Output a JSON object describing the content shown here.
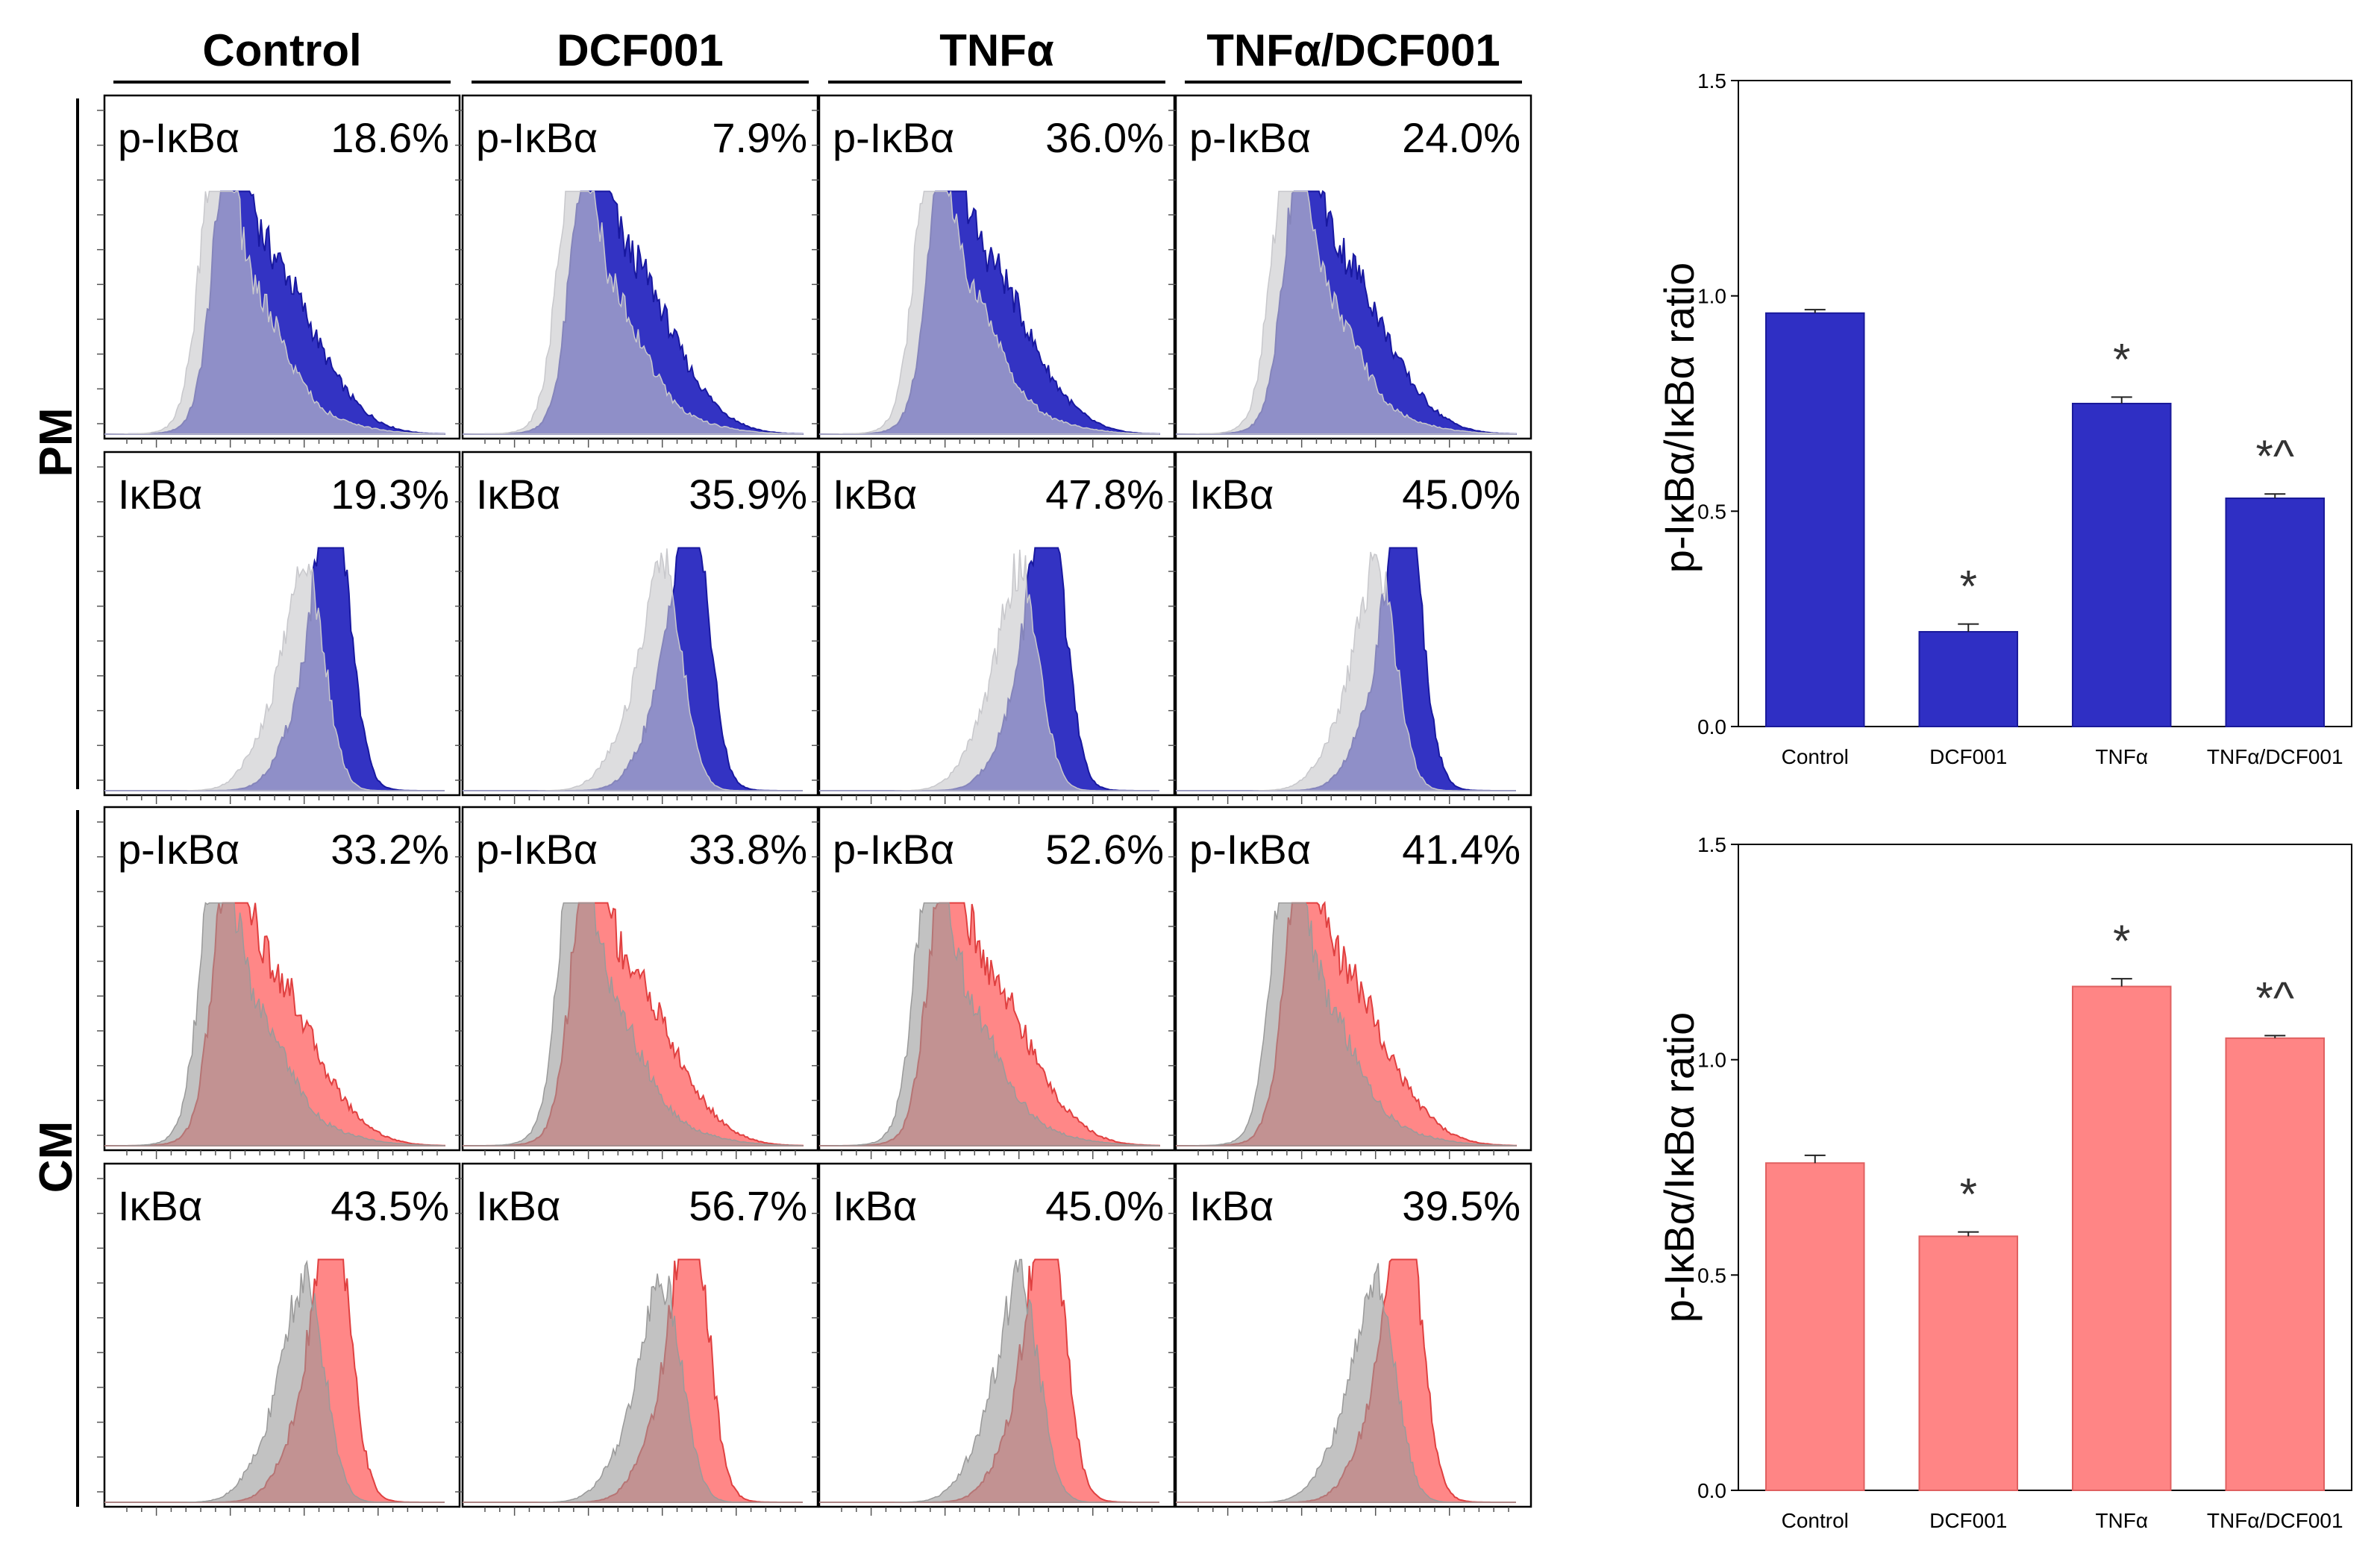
{
  "conditions": [
    "Control",
    "DCF001",
    "TNFα",
    "TNFα/DCF001"
  ],
  "row_groups": [
    "PM",
    "CM"
  ],
  "marker_labels": {
    "phospho": "p-IκBα",
    "total": "IκBα"
  },
  "histogram_panels": {
    "PM": {
      "phospho": [
        "18.6%",
        "7.9%",
        "36.0%",
        "24.0%"
      ],
      "total": [
        "19.3%",
        "35.9%",
        "47.8%",
        "45.0%"
      ]
    },
    "CM": {
      "phospho": [
        "33.2%",
        "33.8%",
        "52.6%",
        "41.4%"
      ],
      "total": [
        "43.5%",
        "56.7%",
        "45.0%",
        "39.5%"
      ]
    }
  },
  "colors": {
    "pm_fill": "#2828c0",
    "pm_outline": "#1818a0",
    "cm_fill": "#ff7a7a",
    "cm_outline": "#e04040",
    "control_gray_pm": "#c8c8cc",
    "control_gray_cm": "#9a9a9a"
  },
  "chart_data": [
    {
      "type": "bar",
      "title": "",
      "categories": [
        "Control",
        "DCF001",
        "TNFα",
        "TNFα/DCF001"
      ],
      "values": [
        0.96,
        0.22,
        0.75,
        0.53
      ],
      "errors": [
        0.008,
        0.018,
        0.015,
        0.01
      ],
      "annotations": [
        "",
        "*",
        "*",
        "*^"
      ],
      "ylabel": "p-IκBα/IκBα ratio",
      "xlabel": "",
      "ylim": [
        0,
        1.5
      ],
      "yticks": [
        "0.0",
        "0.5",
        "1.0",
        "1.5"
      ],
      "color": "#2f2fc4",
      "grid": false
    },
    {
      "type": "bar",
      "title": "",
      "categories": [
        "Control",
        "DCF001",
        "TNFα",
        "TNFα/DCF001"
      ],
      "values": [
        0.76,
        0.59,
        1.17,
        1.05
      ],
      "errors": [
        0.018,
        0.01,
        0.018,
        0.006
      ],
      "annotations": [
        "",
        "*",
        "*",
        "*^"
      ],
      "ylabel": "p-IκBα/IκBα ratio",
      "xlabel": "",
      "ylim": [
        0,
        1.5
      ],
      "yticks": [
        "0.0",
        "0.5",
        "1.0",
        "1.5"
      ],
      "color": "#ff8585",
      "grid": false
    }
  ]
}
